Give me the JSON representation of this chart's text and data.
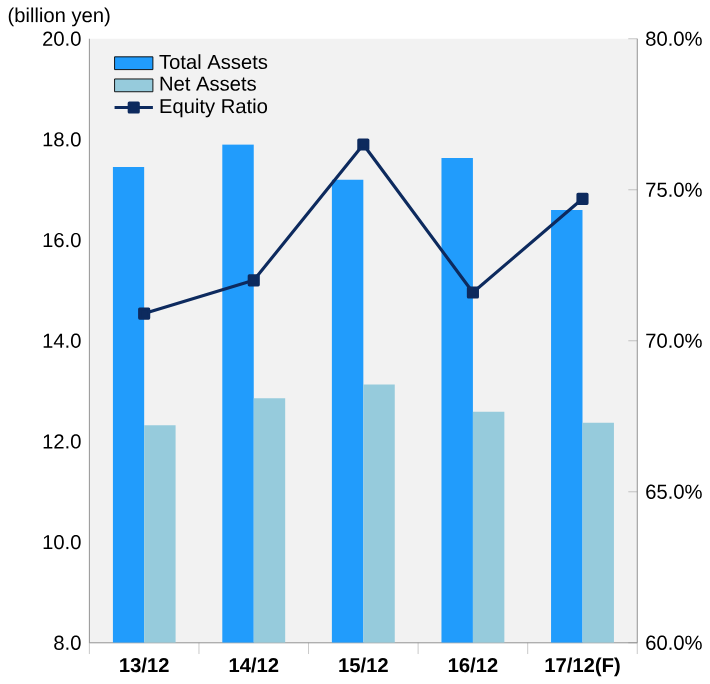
{
  "chart_data": {
    "type": "bar",
    "ylabel": "(billion yen)",
    "categories": [
      "13/12",
      "14/12",
      "15/12",
      "16/12",
      "17/12(F)"
    ],
    "series": [
      {
        "name": "Total Assets",
        "color": "#219cfc",
        "values": [
          17.45,
          17.9,
          17.2,
          17.63,
          16.6
        ]
      },
      {
        "name": "Net Assets",
        "color": "#96cbdc",
        "values": [
          12.32,
          12.86,
          13.13,
          12.59,
          12.37
        ]
      },
      {
        "name": "Equity Ratio",
        "type": "line",
        "axis": "y2",
        "color": "#0d2a5e",
        "marker": "square",
        "values": [
          70.9,
          72.0,
          76.5,
          71.6,
          74.7
        ]
      }
    ],
    "ylim": [
      8,
      20
    ],
    "yticks": [
      {
        "value": 8,
        "label": "8.0"
      },
      {
        "value": 10,
        "label": "10.0"
      },
      {
        "value": 12,
        "label": "12.0"
      },
      {
        "value": 14,
        "label": "14.0"
      },
      {
        "value": 16,
        "label": "16.0"
      },
      {
        "value": 18,
        "label": "18.0"
      },
      {
        "value": 20,
        "label": "20.0"
      }
    ],
    "y2lim": [
      60,
      80
    ],
    "y2ticks": [
      {
        "value": 60,
        "label": "60.0%"
      },
      {
        "value": 65,
        "label": "65.0%"
      },
      {
        "value": 70,
        "label": "70.0%"
      },
      {
        "value": 75,
        "label": "75.0%"
      },
      {
        "value": 80,
        "label": "80.0%"
      }
    ],
    "legend": "top left",
    "grid": false
  }
}
